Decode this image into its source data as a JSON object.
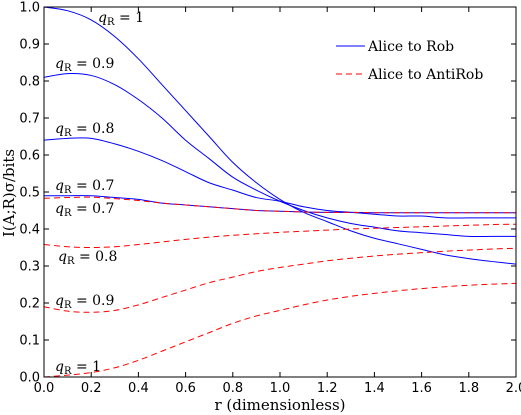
{
  "chart_data": {
    "type": "line",
    "xlabel": "r (dimensionless)",
    "ylabel": "I(A;R)σ/bits",
    "xlim": [
      0.0,
      2.0
    ],
    "ylim": [
      0.0,
      1.0
    ],
    "xticks": [
      "0.0",
      "0.2",
      "0.4",
      "0.6",
      "0.8",
      "1.0",
      "1.2",
      "1.4",
      "1.6",
      "1.8",
      "2.0"
    ],
    "yticks": [
      "0.0",
      "0.1",
      "0.2",
      "0.3",
      "0.4",
      "0.5",
      "0.6",
      "0.7",
      "0.8",
      "0.9",
      "1.0"
    ],
    "legend_position": "top-right",
    "legend": [
      {
        "label": "Alice to Rob",
        "style": "solid",
        "color": "#0000ff"
      },
      {
        "label": "Alice to AntiRob",
        "style": "dashed",
        "color": "#ff0000"
      }
    ],
    "x": [
      0.0,
      0.1,
      0.2,
      0.3,
      0.4,
      0.5,
      0.6,
      0.7,
      0.8,
      0.9,
      1.0,
      1.1,
      1.2,
      1.3,
      1.4,
      1.5,
      1.6,
      1.7,
      1.8,
      1.9,
      2.0
    ],
    "series": [
      {
        "group": "Alice to Rob",
        "annotation": "q_R = 1",
        "color": "#0000ff",
        "style": "solid",
        "values": [
          1.0,
          0.99,
          0.965,
          0.92,
          0.86,
          0.79,
          0.72,
          0.65,
          0.58,
          0.525,
          0.48,
          0.445,
          0.42,
          0.395,
          0.375,
          0.36,
          0.345,
          0.33,
          0.32,
          0.312,
          0.305
        ]
      },
      {
        "group": "Alice to Rob",
        "annotation": "q_R = 0.9",
        "color": "#0000ff",
        "style": "solid",
        "values": [
          0.81,
          0.82,
          0.815,
          0.79,
          0.75,
          0.7,
          0.64,
          0.59,
          0.54,
          0.505,
          0.475,
          0.45,
          0.43,
          0.415,
          0.405,
          0.395,
          0.39,
          0.385,
          0.38,
          0.38,
          0.38
        ]
      },
      {
        "group": "Alice to Rob",
        "annotation": "q_R = 0.8",
        "color": "#0000ff",
        "style": "solid",
        "values": [
          0.64,
          0.645,
          0.645,
          0.63,
          0.61,
          0.585,
          0.555,
          0.525,
          0.505,
          0.485,
          0.475,
          0.46,
          0.45,
          0.445,
          0.44,
          0.435,
          0.435,
          0.43,
          0.43,
          0.43,
          0.43
        ]
      },
      {
        "group": "Alice to Rob",
        "annotation": "q_R = 0.7",
        "color": "#0000ff",
        "style": "solid",
        "values": [
          0.49,
          0.49,
          0.49,
          0.485,
          0.48,
          0.47,
          0.465,
          0.46,
          0.455,
          0.45,
          0.448,
          0.446,
          0.445,
          0.445,
          0.444,
          0.444,
          0.444,
          0.444,
          0.444,
          0.444,
          0.444
        ]
      },
      {
        "group": "Alice to AntiRob",
        "annotation": "q_R = 0.7",
        "color": "#ff0000",
        "style": "dashed",
        "values": [
          0.483,
          0.485,
          0.486,
          0.482,
          0.477,
          0.47,
          0.465,
          0.46,
          0.455,
          0.45,
          0.448,
          0.446,
          0.445,
          0.445,
          0.444,
          0.444,
          0.444,
          0.444,
          0.444,
          0.444,
          0.444
        ]
      },
      {
        "group": "Alice to AntiRob",
        "annotation": "q_R = 0.8",
        "color": "#ff0000",
        "style": "dashed",
        "values": [
          0.358,
          0.352,
          0.35,
          0.352,
          0.358,
          0.365,
          0.372,
          0.378,
          0.383,
          0.387,
          0.391,
          0.394,
          0.397,
          0.4,
          0.402,
          0.404,
          0.406,
          0.408,
          0.41,
          0.412,
          0.413
        ]
      },
      {
        "group": "Alice to AntiRob",
        "annotation": "q_R = 0.9",
        "color": "#ff0000",
        "style": "dashed",
        "values": [
          0.19,
          0.178,
          0.175,
          0.18,
          0.195,
          0.215,
          0.235,
          0.255,
          0.27,
          0.285,
          0.296,
          0.305,
          0.314,
          0.321,
          0.327,
          0.332,
          0.336,
          0.34,
          0.343,
          0.346,
          0.348
        ]
      },
      {
        "group": "Alice to AntiRob",
        "annotation": "q_R = 1",
        "color": "#ff0000",
        "style": "dashed",
        "values": [
          0.0,
          0.005,
          0.012,
          0.025,
          0.045,
          0.07,
          0.095,
          0.12,
          0.145,
          0.165,
          0.18,
          0.195,
          0.208,
          0.218,
          0.226,
          0.233,
          0.239,
          0.244,
          0.248,
          0.251,
          0.253
        ]
      }
    ]
  }
}
